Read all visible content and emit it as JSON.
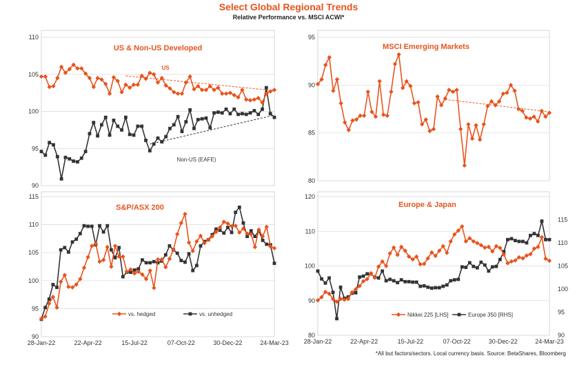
{
  "header": {
    "title": "Select Global Regional Trends",
    "subtitle": "Relative Performance vs. MSCI ACWI*"
  },
  "footnote": "*All but factors/sectors. Local currency basis.  Source: BetaShares, Bloomberg",
  "colors": {
    "orange": "#e8531c",
    "black": "#333333",
    "grid": "#d9d9d9"
  },
  "chart_data": [
    {
      "id": "us",
      "type": "line",
      "title": "US & Non-US Developed",
      "x_tick_labels": [
        "28-Jan-22",
        "22-Apr-22",
        "15-Jul-22",
        "07-Oct-22",
        "30-Dec-22",
        "24-Mar-23"
      ],
      "y_ticks": [
        90,
        95,
        100,
        105,
        110
      ],
      "ylim": [
        90,
        110
      ],
      "series": [
        {
          "name": "US",
          "color": "#e8531c",
          "marker": "diamond",
          "values": [
            104.7,
            104.7,
            103.3,
            103.4,
            104.5,
            106.0,
            105.2,
            105.7,
            106.3,
            105.8,
            105.8,
            105.1,
            104.5,
            103.3,
            104.5,
            104.3,
            103.7,
            102.4,
            104.6,
            104.1,
            102.6,
            103.6,
            103.2,
            103.6,
            103.6,
            104.8,
            104.4,
            105.2,
            105.0,
            103.9,
            104.5,
            103.5,
            103.1,
            102.6,
            102.4,
            102.4,
            103.9,
            104.7,
            103.0,
            103.4,
            102.9,
            102.9,
            103.4,
            102.9,
            103.2,
            102.4,
            102.4,
            102.5,
            102.2,
            101.9,
            102.9,
            101.6,
            101.5,
            101.6,
            101.8,
            101.2,
            102.4,
            102.7,
            102.9
          ]
        },
        {
          "name": "Non-US (EAFE)",
          "color": "#333333",
          "marker": "square",
          "values": [
            94.6,
            94.1,
            95.8,
            95.5,
            93.9,
            90.9,
            93.8,
            93.6,
            93.3,
            93.2,
            93.7,
            94.6,
            97.0,
            98.5,
            96.7,
            98.2,
            99.2,
            96.8,
            98.8,
            98.0,
            97.5,
            99.2,
            96.9,
            96.8,
            98.0,
            98.0,
            96.1,
            94.7,
            95.6,
            96.4,
            95.9,
            96.6,
            97.7,
            98.2,
            99.3,
            97.3,
            98.6,
            100.2,
            97.7,
            98.9,
            99.0,
            99.1,
            97.8,
            99.8,
            99.9,
            99.8,
            100.3,
            99.7,
            100.3,
            99.6,
            99.7,
            99.6,
            99.8,
            100.1,
            99.6,
            100.3,
            103.2,
            99.7,
            99.2
          ]
        }
      ],
      "trendlines": [
        {
          "series": "US",
          "from": [
            21,
            104.8
          ],
          "to": [
            58,
            102.8
          ]
        },
        {
          "series": "Non-US (EAFE)",
          "from": [
            27,
            95.6
          ],
          "to": [
            58,
            99.5
          ]
        }
      ],
      "annotations": [
        "US",
        "Non-US (EAFE)"
      ]
    },
    {
      "id": "em",
      "type": "line",
      "title": "MSCI Emerging Markets",
      "y_ticks": [
        80,
        85,
        90,
        95
      ],
      "ylim": [
        80,
        95
      ],
      "series": [
        {
          "name": "",
          "color": "#e8531c",
          "marker": "diamond",
          "values": [
            90.1,
            90.6,
            92.1,
            92.9,
            89.4,
            90.6,
            88.1,
            86.1,
            85.3,
            86.3,
            86.4,
            86.8,
            86.8,
            89.3,
            87.2,
            86.7,
            90.4,
            86.9,
            86.8,
            89.3,
            92.2,
            93.2,
            89.7,
            90.4,
            89.9,
            88.1,
            88.2,
            85.9,
            86.4,
            85.2,
            85.4,
            88.8,
            87.9,
            88.6,
            89.5,
            89.3,
            89.5,
            85.4,
            81.6,
            85.9,
            84.4,
            85.8,
            84.3,
            85.9,
            87.8,
            88.3,
            87.9,
            88.3,
            89.1,
            89.2,
            90.0,
            89.4,
            87.5,
            87.3,
            86.6,
            86.5,
            86.7,
            86.2,
            87.3,
            86.7,
            87.1
          ]
        }
      ],
      "trendlines": [
        {
          "from": [
            33,
            88.5
          ],
          "to": [
            60,
            87.2
          ]
        }
      ]
    },
    {
      "id": "asx",
      "type": "line",
      "title": "S&P/ASX 200",
      "x_tick_labels": [
        "28-Jan-22",
        "22-Apr-22",
        "15-Jul-22",
        "07-Oct-22",
        "30-Dec-22",
        "24-Mar-23"
      ],
      "y_ticks": [
        90,
        95,
        100,
        105,
        110,
        115
      ],
      "ylim": [
        90,
        115
      ],
      "series": [
        {
          "name": "vs. hedged",
          "color": "#e8531c",
          "marker": "diamond",
          "values": [
            93.2,
            93.6,
            95.9,
            97.1,
            95.2,
            99.8,
            101.0,
            98.9,
            98.8,
            99.3,
            100.3,
            102.3,
            104.2,
            106.2,
            106.6,
            103.4,
            103.7,
            106.0,
            102.5,
            106.2,
            104.3,
            104.3,
            101.6,
            102.0,
            101.3,
            101.6,
            101.1,
            100.3,
            101.8,
            98.7,
            103.8,
            103.8,
            102.4,
            103.9,
            105.5,
            108.3,
            110.3,
            111.9,
            106.8,
            105.3,
            107.0,
            108.0,
            106.7,
            107.3,
            107.9,
            108.7,
            109.5,
            110.5,
            110.2,
            109.7,
            109.8,
            108.6,
            109.3,
            108.4,
            108.3,
            106.0,
            109.1,
            107.9,
            109.6,
            106.1,
            105.8
          ]
        },
        {
          "name": "vs. unhedged",
          "color": "#333333",
          "marker": "square",
          "values": [
            93.1,
            95.2,
            96.7,
            99.3,
            98.8,
            105.5,
            105.9,
            105.1,
            106.9,
            107.4,
            108.4,
            109.8,
            109.7,
            109.7,
            106.4,
            109.8,
            108.7,
            109.8,
            105.5,
            104.1,
            105.9,
            100.7,
            101.5,
            101.5,
            101.9,
            102.1,
            103.7,
            103.2,
            103.2,
            103.4,
            103.2,
            103.5,
            104.6,
            106.2,
            105.5,
            104.9,
            103.6,
            103.3,
            104.8,
            101.8,
            102.7,
            106.2,
            107.0,
            107.3,
            108.2,
            109.2,
            109.0,
            108.5,
            109.5,
            108.6,
            112.2,
            113.1,
            110.3,
            107.9,
            108.9,
            107.9,
            108.9,
            107.2,
            106.5,
            106.4,
            103.1
          ]
        }
      ]
    },
    {
      "id": "ej",
      "type": "line",
      "title": "Europe & Japan",
      "x_tick_labels": [
        "28-Jan-22",
        "22-Apr-22",
        "15-Jul-22",
        "07-Oct-22",
        "30-Dec-22",
        "24-Mar-23"
      ],
      "y_ticks": [
        80,
        90,
        100,
        110,
        120
      ],
      "ylim": [
        80,
        120
      ],
      "y2_ticks": [
        90,
        95,
        100,
        105,
        110,
        115
      ],
      "y2lim": [
        90,
        120
      ],
      "series": [
        {
          "name": "Nikkei 225 [LHS]",
          "axis": "left",
          "color": "#e8531c",
          "marker": "diamond",
          "values": [
            90.1,
            91.0,
            92.5,
            92.0,
            90.5,
            89.7,
            90.5,
            90.3,
            90.5,
            92.4,
            93.3,
            94.2,
            95.6,
            96.2,
            97.9,
            96.6,
            99.8,
            101.3,
            100.0,
            103.6,
            105.3,
            103.2,
            105.5,
            104.4,
            102.7,
            101.9,
            102.7,
            100.5,
            100.6,
            102.2,
            103.9,
            102.9,
            104.4,
            105.7,
            103.8,
            107.1,
            109.1,
            110.2,
            111.4,
            107.1,
            108.0,
            107.1,
            106.6,
            106.0,
            105.3,
            105.5,
            104.2,
            105.7,
            105.2,
            103.3,
            100.8,
            101.3,
            101.6,
            102.5,
            102.2,
            103.0,
            103.4,
            105.0,
            105.5,
            108.3,
            102.1,
            101.5
          ]
        },
        {
          "name": "Europe 350 [RHS]",
          "axis": "right",
          "color": "#333333",
          "marker": "square",
          "values": [
            103.9,
            102.2,
            101.3,
            102.4,
            99.3,
            93.6,
            100.4,
            98.0,
            98.3,
            99.1,
            99.2,
            102.6,
            102.8,
            103.3,
            103.3,
            102.6,
            102.4,
            103.9,
            101.8,
            102.1,
            101.8,
            101.4,
            102.0,
            101.6,
            101.6,
            101.5,
            101.5,
            100.6,
            100.7,
            100.4,
            100.2,
            100.3,
            100.3,
            100.6,
            100.9,
            101.8,
            102.0,
            102.1,
            104.8,
            104.7,
            105.7,
            104.9,
            104.6,
            105.8,
            105.2,
            103.9,
            104.8,
            104.9,
            106.4,
            108.1,
            110.7,
            110.9,
            110.5,
            110.3,
            110.3,
            110.0,
            111.6,
            112.0,
            111.6,
            114.7,
            110.7,
            110.7
          ]
        }
      ],
      "legend": [
        "Nikkei 225 [LHS]",
        "Europe 350 [RHS]"
      ]
    }
  ]
}
